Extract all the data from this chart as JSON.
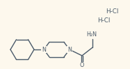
{
  "bg_color": "#fdf8ed",
  "line_color": "#4a5a6a",
  "text_color": "#4a5a6a",
  "hcl1": "H-Cl",
  "hcl2": "H-Cl",
  "nh2": "H₂N",
  "n_label": "N",
  "n_label2": "N",
  "o_label": "O",
  "figsize": [
    1.87,
    0.99
  ],
  "dpi": 100
}
